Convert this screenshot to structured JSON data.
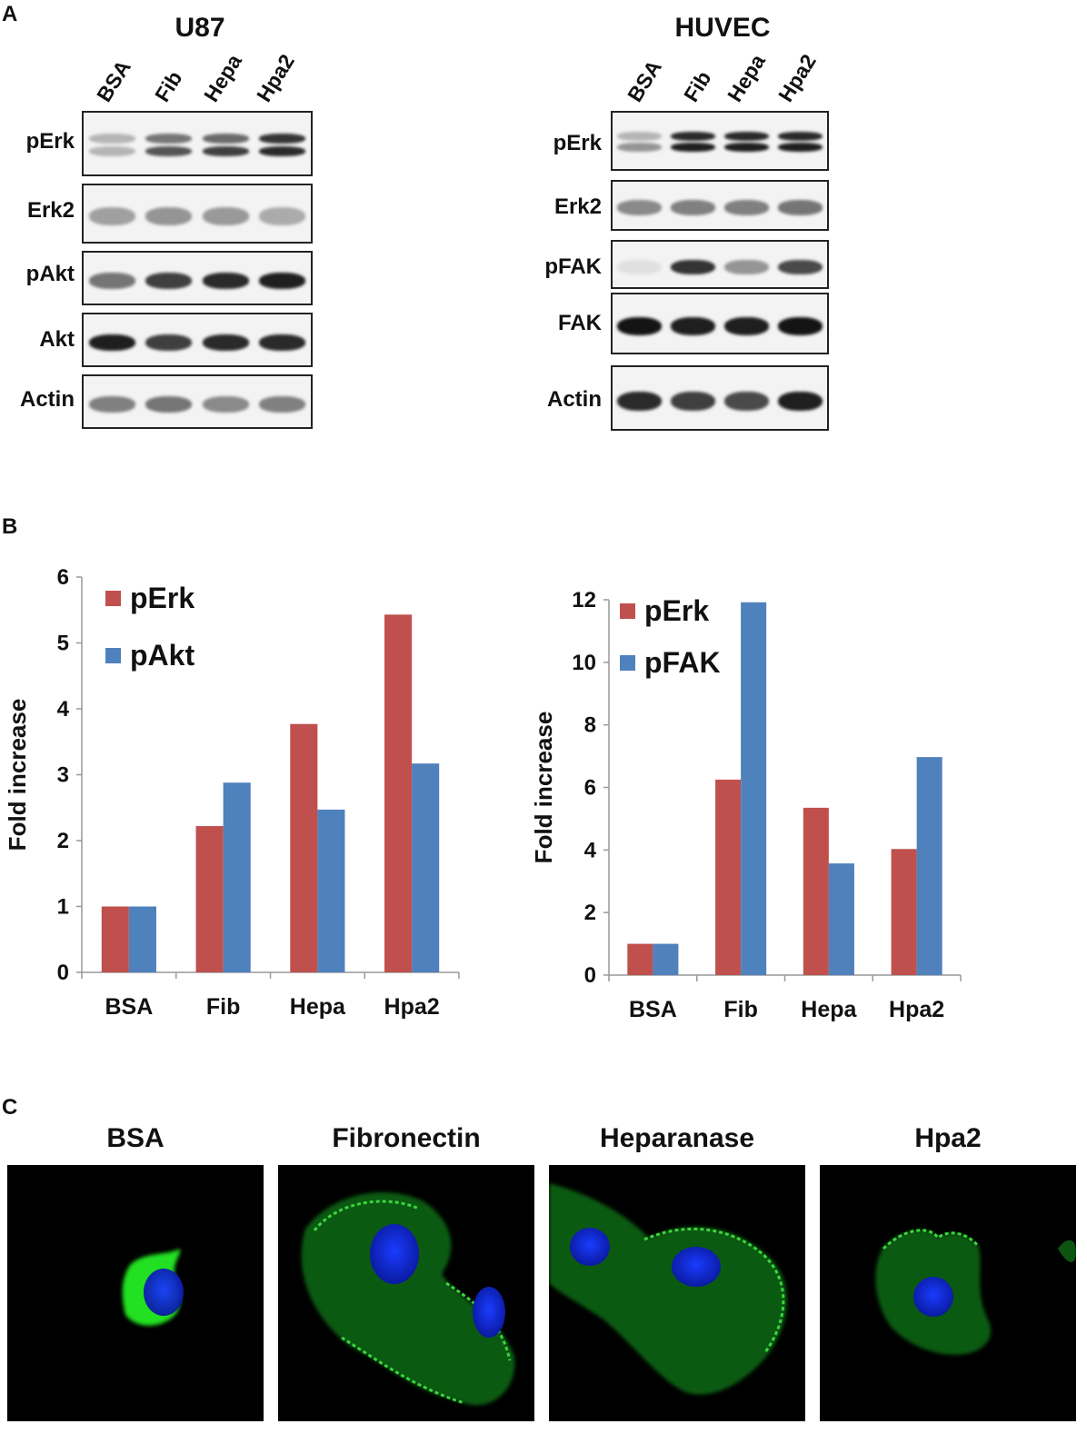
{
  "panels": {
    "a": "A",
    "b": "B",
    "c": "C"
  },
  "blots": [
    {
      "title": "U87",
      "lanes": [
        "BSA",
        "Fib",
        "Hepa",
        "Hpa2"
      ],
      "rows": [
        {
          "label": "pErk",
          "bands": [
            [
              0.25,
              0.25
            ],
            [
              0.55,
              0.7
            ],
            [
              0.6,
              0.8
            ],
            [
              0.85,
              0.9
            ]
          ],
          "double": true
        },
        {
          "label": "Erk2",
          "bands": [
            0.35,
            0.4,
            0.38,
            0.3
          ]
        },
        {
          "label": "pAkt",
          "bands": [
            0.55,
            0.8,
            0.9,
            0.95
          ]
        },
        {
          "label": "Akt",
          "bands": [
            0.95,
            0.8,
            0.9,
            0.9
          ]
        },
        {
          "label": "Actin",
          "bands": [
            0.5,
            0.55,
            0.45,
            0.5
          ]
        }
      ]
    },
    {
      "title": "HUVEC",
      "lanes": [
        "BSA",
        "Fib",
        "Hepa",
        "Hpa2"
      ],
      "rows": [
        {
          "label": "pErk",
          "bands": [
            [
              0.25,
              0.4
            ],
            [
              0.9,
              0.95
            ],
            [
              0.9,
              0.95
            ],
            [
              0.9,
              0.95
            ]
          ],
          "double": true
        },
        {
          "label": "Erk2",
          "bands": [
            0.45,
            0.5,
            0.5,
            0.55
          ]
        },
        {
          "label": "pFAK",
          "bands": [
            0.05,
            0.85,
            0.4,
            0.75
          ]
        },
        {
          "label": "FAK",
          "bands": [
            1.0,
            0.95,
            0.95,
            1.0
          ]
        },
        {
          "label": "Actin",
          "bands": [
            0.9,
            0.8,
            0.75,
            0.95
          ]
        }
      ]
    }
  ],
  "chart_data": [
    {
      "type": "bar",
      "categories": [
        "BSA",
        "Fib",
        "Hepa",
        "Hpa2"
      ],
      "series": [
        {
          "name": "pErk",
          "color": "#c0504d",
          "values": [
            1,
            2.22,
            3.77,
            5.43
          ]
        },
        {
          "name": "pAkt",
          "color": "#4f81bd",
          "values": [
            1,
            2.88,
            2.47,
            3.17
          ]
        }
      ],
      "ylabel": "Fold increase",
      "ylim": [
        0,
        6
      ],
      "yticks": [
        0,
        1,
        2,
        3,
        4,
        5,
        6
      ],
      "legend": "top-left",
      "grid": false
    },
    {
      "type": "bar",
      "categories": [
        "BSA",
        "Fib",
        "Hepa",
        "Hpa2"
      ],
      "series": [
        {
          "name": "pErk",
          "color": "#c0504d",
          "values": [
            1,
            6.25,
            5.35,
            4.03
          ]
        },
        {
          "name": "pFAK",
          "color": "#4f81bd",
          "values": [
            1,
            11.92,
            3.57,
            6.97
          ]
        }
      ],
      "ylabel": "Fold increase",
      "ylim": [
        0,
        12
      ],
      "yticks": [
        0,
        2,
        4,
        6,
        8,
        10,
        12
      ],
      "legend": "top-left",
      "grid": false
    }
  ],
  "micrographs": {
    "titles": [
      "BSA",
      "Fibronectin",
      "Heparanase",
      "Hpa2"
    ]
  }
}
